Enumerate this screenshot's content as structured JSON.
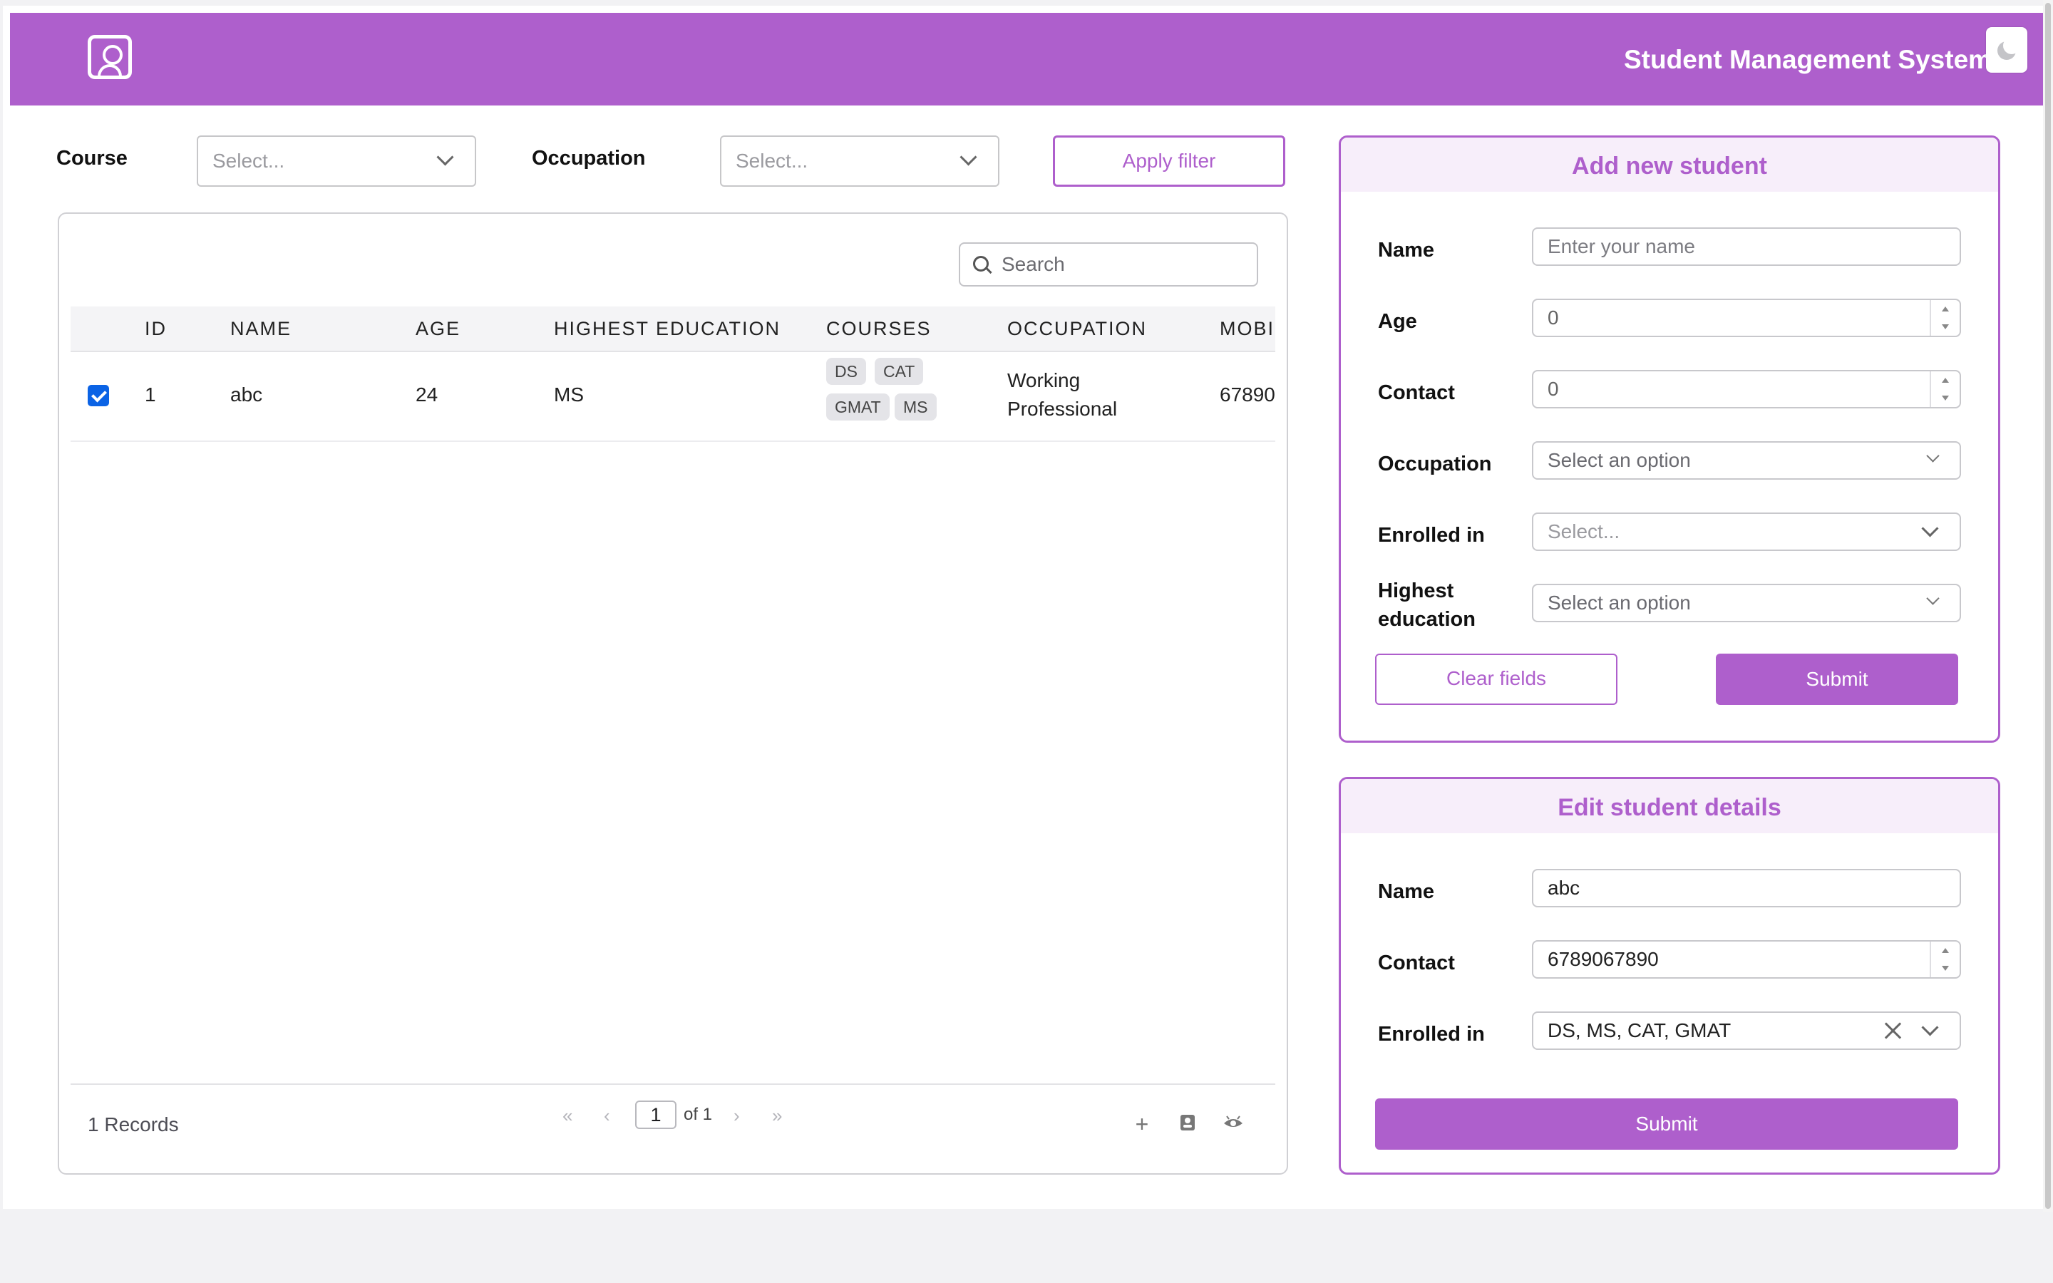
{
  "header": {
    "title": "Student Management System",
    "logo_icon": "user-portrait-icon",
    "theme_icon": "moon-icon",
    "brand_color": "#ae5fcc"
  },
  "filters": {
    "course_label": "Course",
    "course_placeholder": "Select...",
    "occupation_label": "Occupation",
    "occupation_placeholder": "Select...",
    "apply_label": "Apply filter"
  },
  "table": {
    "search_placeholder": "Search",
    "columns": [
      "ID",
      "NAME",
      "AGE",
      "HIGHEST EDUCATION",
      "COURSES",
      "OCCUPATION",
      "MOBI"
    ],
    "rows": [
      {
        "checked": true,
        "id": "1",
        "name": "abc",
        "age": "24",
        "education": "MS",
        "courses": [
          "DS",
          "CAT",
          "GMAT",
          "MS"
        ],
        "occupation_line1": "Working",
        "occupation_line2": "Professional",
        "mobile": "67890"
      }
    ],
    "footer": {
      "records": "1 Records",
      "first": "«",
      "prev": "‹",
      "page": "1",
      "of": "of 1",
      "next": "›",
      "last": "»",
      "tools": [
        "plus-icon",
        "add-contact-icon",
        "eye-icon"
      ]
    }
  },
  "add_form": {
    "title": "Add new student",
    "name_label": "Name",
    "name_placeholder": "Enter your name",
    "age_label": "Age",
    "age_value": "0",
    "contact_label": "Contact",
    "contact_value": "0",
    "occupation_label": "Occupation",
    "occupation_placeholder": "Select an option",
    "enrolled_label": "Enrolled in",
    "enrolled_placeholder": "Select...",
    "education_label_1": "Highest",
    "education_label_2": "education",
    "education_placeholder": "Select an option",
    "clear_label": "Clear fields",
    "submit_label": "Submit"
  },
  "edit_form": {
    "title": "Edit student details",
    "name_label": "Name",
    "name_value": "abc",
    "contact_label": "Contact",
    "contact_value": "6789067890",
    "enrolled_label": "Enrolled in",
    "enrolled_value": "DS, MS, CAT, GMAT",
    "submit_label": "Submit"
  }
}
